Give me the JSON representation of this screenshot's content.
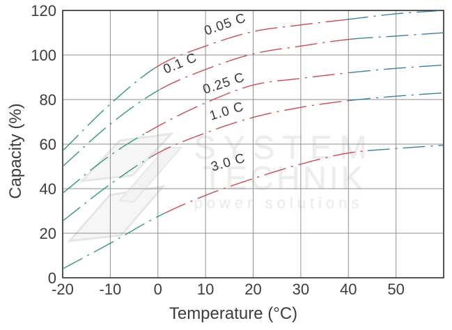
{
  "watermark": {
    "line1": "SYSTEM",
    "line2": "TECHNIK",
    "line3": "power solutions"
  },
  "chart_data": {
    "type": "line",
    "title": "",
    "xlabel": "Temperature (°C)",
    "ylabel": "Capacity (%)",
    "xlim": [
      -20,
      60
    ],
    "ylim": [
      0,
      120
    ],
    "x_ticks": [
      -20,
      -10,
      0,
      10,
      20,
      30,
      40,
      50
    ],
    "y_ticks": [
      0,
      20,
      40,
      60,
      80,
      100,
      120
    ],
    "grid": true,
    "line_style": "dash-dot",
    "x": [
      -20,
      -10,
      0,
      10,
      20,
      30,
      40,
      50,
      60
    ],
    "series": [
      {
        "name": "0.05 C",
        "values": [
          57,
          78,
          95,
          104,
          110.5,
          113.5,
          116,
          118.5,
          120
        ],
        "color_breaks": [
          -0.5,
          39.5
        ],
        "label": {
          "x": 14.4,
          "y": 112,
          "angle": -19
        }
      },
      {
        "name": "0.1 C",
        "values": [
          50,
          69,
          84,
          93.5,
          100.5,
          104,
          107,
          108.5,
          110
        ],
        "color_breaks": [
          0.5,
          40.5
        ],
        "label": {
          "x": 5.0,
          "y": 94.5,
          "angle": -22
        }
      },
      {
        "name": "0.25 C",
        "values": [
          38,
          55,
          68,
          78.5,
          86.5,
          89.5,
          92,
          94,
          95.5
        ],
        "color_breaks": [
          -2.5,
          40.0
        ],
        "label": {
          "x": 14.1,
          "y": 85.5,
          "angle": -18
        }
      },
      {
        "name": "1.0 C",
        "values": [
          25.5,
          42,
          56,
          65,
          72,
          76.5,
          79.5,
          81.5,
          83
        ],
        "color_breaks": [
          -1.5,
          40.0
        ],
        "label": {
          "x": 14.7,
          "y": 73,
          "angle": -17
        }
      },
      {
        "name": "3.0 C",
        "values": [
          4,
          15.5,
          27.5,
          37,
          44.5,
          51,
          56,
          58,
          59.5
        ],
        "color_breaks": [
          1.5,
          44.0
        ],
        "label": {
          "x": 15.0,
          "y": 50,
          "angle": -16
        }
      }
    ],
    "colors": {
      "cold_segment": "#2E9B7A",
      "mid_segment": "#CC4A50",
      "hot_segment": "#3E7FA4",
      "grid": "#8f8f8f",
      "axis": "#2b2b2b",
      "text": "#3c3c3c",
      "curve_label": "#383838"
    }
  }
}
